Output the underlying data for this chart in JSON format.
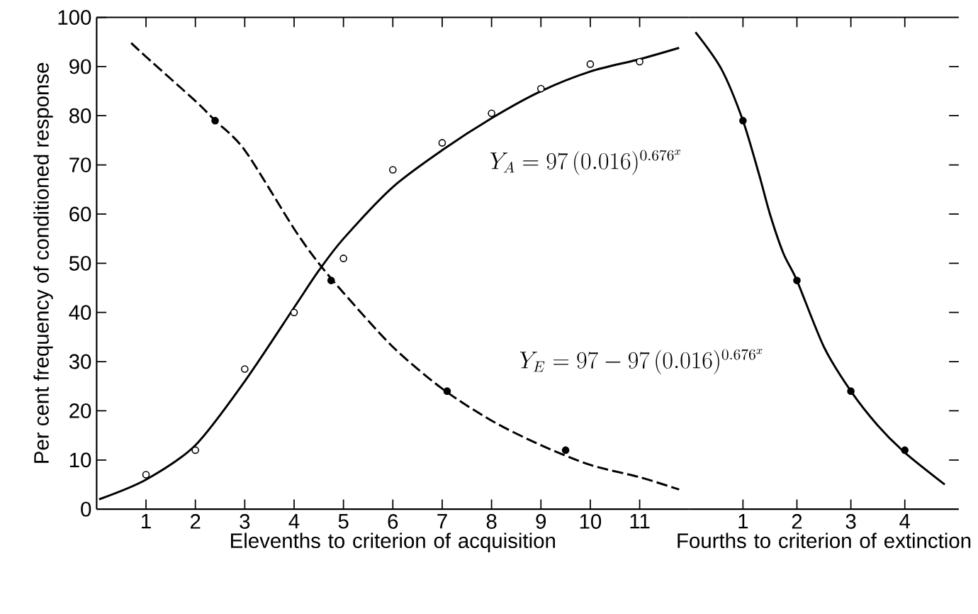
{
  "chart_data": [
    {
      "type": "line",
      "ylabel": "Per cent frequency of conditioned response",
      "xlabel": "Elevenths to criterion of acquisition",
      "xlim": [
        0,
        12
      ],
      "xticks": [
        1,
        2,
        3,
        4,
        5,
        6,
        7,
        8,
        9,
        10,
        11
      ],
      "ylim": [
        0,
        100
      ],
      "yticks": [
        0,
        10,
        20,
        30,
        40,
        50,
        60,
        70,
        80,
        90,
        100
      ],
      "annotations": [
        "Y_A = 97\\,(0.016)^{0.676^{x}}",
        "Y_E = 97 - 97\\,(0.016)^{0.676^{x}}"
      ],
      "series": [
        {
          "line_style": "solid",
          "marker": "none",
          "color": "#000000",
          "x": [
            0.05,
            1,
            2,
            3,
            4,
            4.5,
            5,
            6,
            7,
            8,
            9,
            10,
            11,
            11.8
          ],
          "values": [
            2,
            6,
            13,
            26,
            41,
            48.5,
            55,
            65.5,
            73,
            79.5,
            85,
            89,
            91.5,
            93.8
          ]
        },
        {
          "line_style": "dashed",
          "marker": "none",
          "color": "#000000",
          "x": [
            0.7,
            1,
            2,
            2.4,
            3,
            4,
            4.5,
            5,
            6,
            7,
            8,
            9,
            10,
            11,
            11.8
          ],
          "values": [
            94.8,
            92,
            83,
            79,
            73,
            57,
            50,
            44,
            33,
            24.5,
            18,
            13,
            9,
            6.5,
            4
          ]
        },
        {
          "type": "scatter",
          "marker": "circle",
          "color": "#ffffff",
          "x": [
            1,
            2,
            3,
            4,
            5,
            6,
            7,
            8,
            9,
            10,
            11
          ],
          "values": [
            7,
            12,
            28.5,
            40,
            51,
            69,
            74.5,
            80.5,
            85.5,
            90.5,
            91
          ]
        },
        {
          "type": "scatter",
          "marker": "circle",
          "color": "#000000",
          "x": [
            2.4,
            4.75,
            7.1,
            9.5
          ],
          "values": [
            79,
            46.5,
            24,
            12
          ]
        }
      ]
    },
    {
      "type": "line",
      "xlabel": "Fourths to criterion of extinction",
      "xlim": [
        0,
        5
      ],
      "xticks": [
        1,
        2,
        3,
        4
      ],
      "ylim": [
        0,
        100
      ],
      "yticks": [
        10,
        20,
        30,
        40,
        50,
        60,
        70,
        80,
        90
      ],
      "tick_labels": "x",
      "series": [
        {
          "line_style": "solid",
          "marker": "none",
          "color": "#000000",
          "x": [
            0.12,
            0.6,
            1,
            1.3,
            1.5,
            1.75,
            2,
            2.5,
            3,
            3.5,
            4,
            4.74
          ],
          "values": [
            97,
            89.5,
            79,
            68,
            60,
            52,
            46.5,
            33,
            24,
            17,
            11.5,
            5
          ]
        },
        {
          "type": "scatter",
          "marker": "circle",
          "color": "#000000",
          "x": [
            1,
            2,
            3,
            4
          ],
          "values": [
            79,
            46.5,
            24,
            12
          ]
        }
      ]
    }
  ]
}
